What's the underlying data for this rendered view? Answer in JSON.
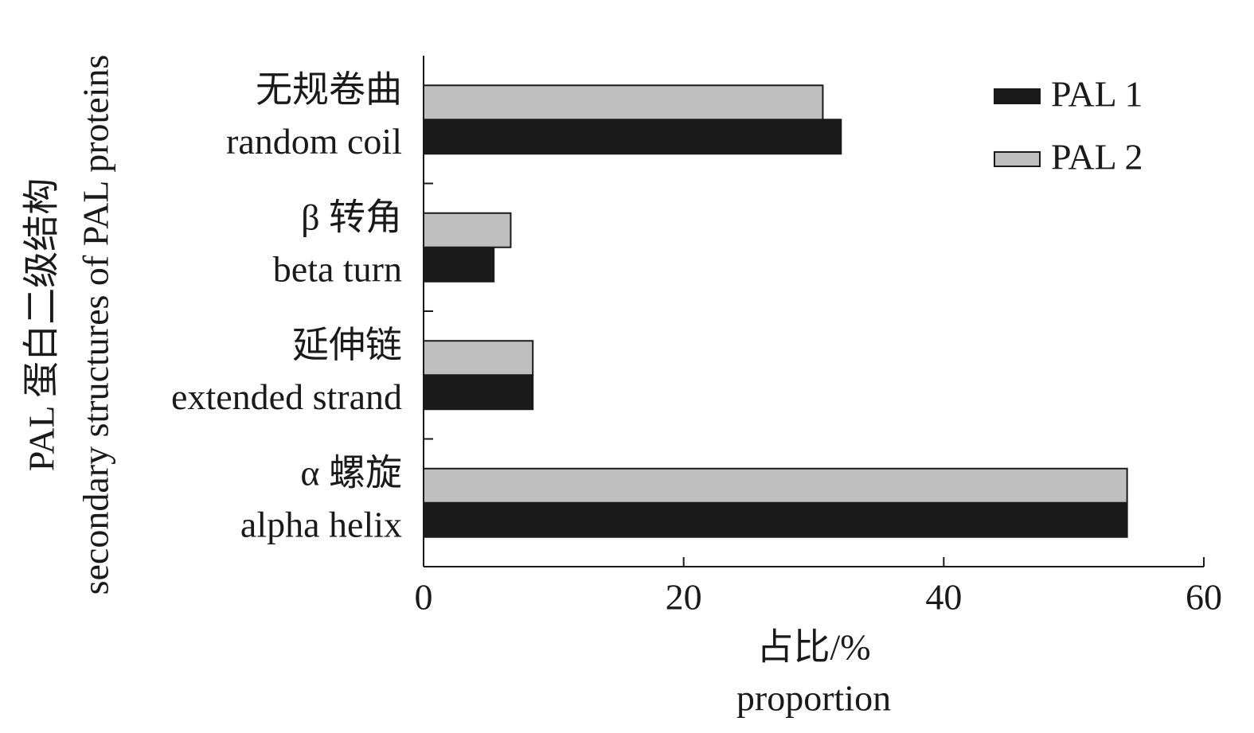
{
  "chart_data": {
    "type": "hbar",
    "categories": [
      {
        "zh": "无规卷曲",
        "en": "random coil"
      },
      {
        "zh": "β 转角",
        "en": "beta turn"
      },
      {
        "zh": "延伸链",
        "en": "extended strand"
      },
      {
        "zh": "α 螺旋",
        "en": "alpha helix"
      }
    ],
    "series": [
      {
        "name": "PAL 1",
        "color": "#1a1a1a",
        "values": [
          32.1,
          5.4,
          8.4,
          54.1
        ]
      },
      {
        "name": "PAL 2",
        "color": "#bfbfbf",
        "values": [
          30.7,
          6.7,
          8.4,
          54.1
        ]
      }
    ],
    "xlim": [
      0,
      60
    ],
    "xticks": [
      0,
      20,
      40,
      60
    ],
    "xlabel": [
      "占比/%",
      "proportion"
    ],
    "ylabel": [
      "PAL 蛋白二级结构",
      "secondary structures of PAL proteins"
    ],
    "legend": "upper right"
  }
}
